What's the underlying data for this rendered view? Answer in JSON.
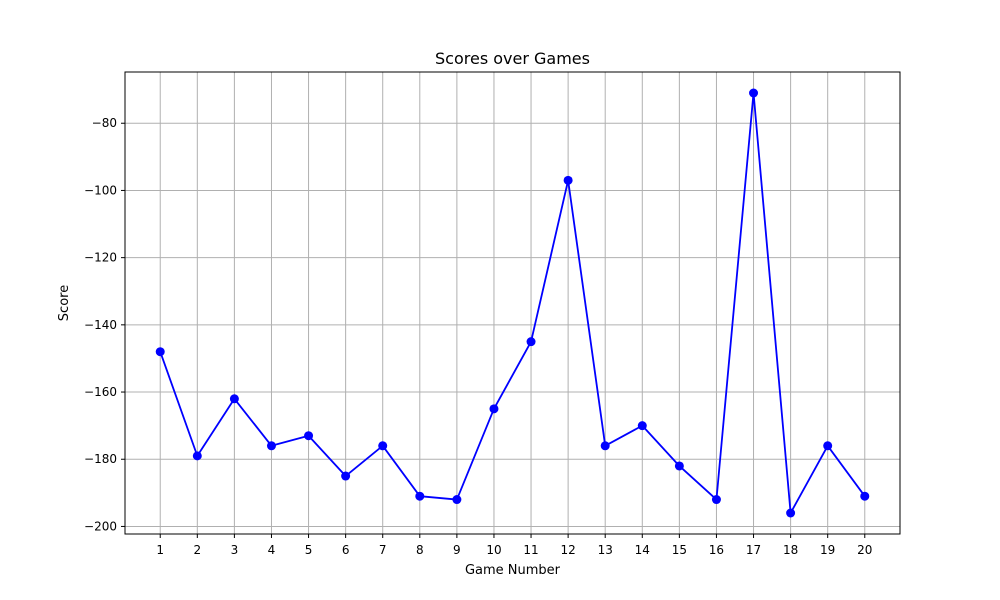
{
  "chart_data": {
    "type": "line",
    "title": "Scores over Games",
    "xlabel": "Game Number",
    "ylabel": "Score",
    "x": [
      1,
      2,
      3,
      4,
      5,
      6,
      7,
      8,
      9,
      10,
      11,
      12,
      13,
      14,
      15,
      16,
      17,
      18,
      19,
      20
    ],
    "series": [
      {
        "values": [
          -148,
          -179,
          -162,
          -176,
          -173,
          -185,
          -176,
          -191,
          -192,
          -165,
          -145,
          -97,
          -176,
          -170,
          -182,
          -192,
          -71,
          -196,
          -176,
          -191
        ],
        "color": "#0000ff",
        "marker": "circle"
      }
    ],
    "xlim": [
      0.05,
      20.95
    ],
    "ylim": [
      -202.25,
      -64.75
    ],
    "xticks": [
      1,
      2,
      3,
      4,
      5,
      6,
      7,
      8,
      9,
      10,
      11,
      12,
      13,
      14,
      15,
      16,
      17,
      18,
      19,
      20
    ],
    "yticks": [
      -200,
      -180,
      -160,
      -140,
      -120,
      -100,
      -80
    ],
    "ytick_labels": [
      "−200",
      "−180",
      "−160",
      "−140",
      "−120",
      "−100",
      "−80"
    ],
    "grid": true,
    "grid_color": "#b0b0b0",
    "legend": null
  }
}
